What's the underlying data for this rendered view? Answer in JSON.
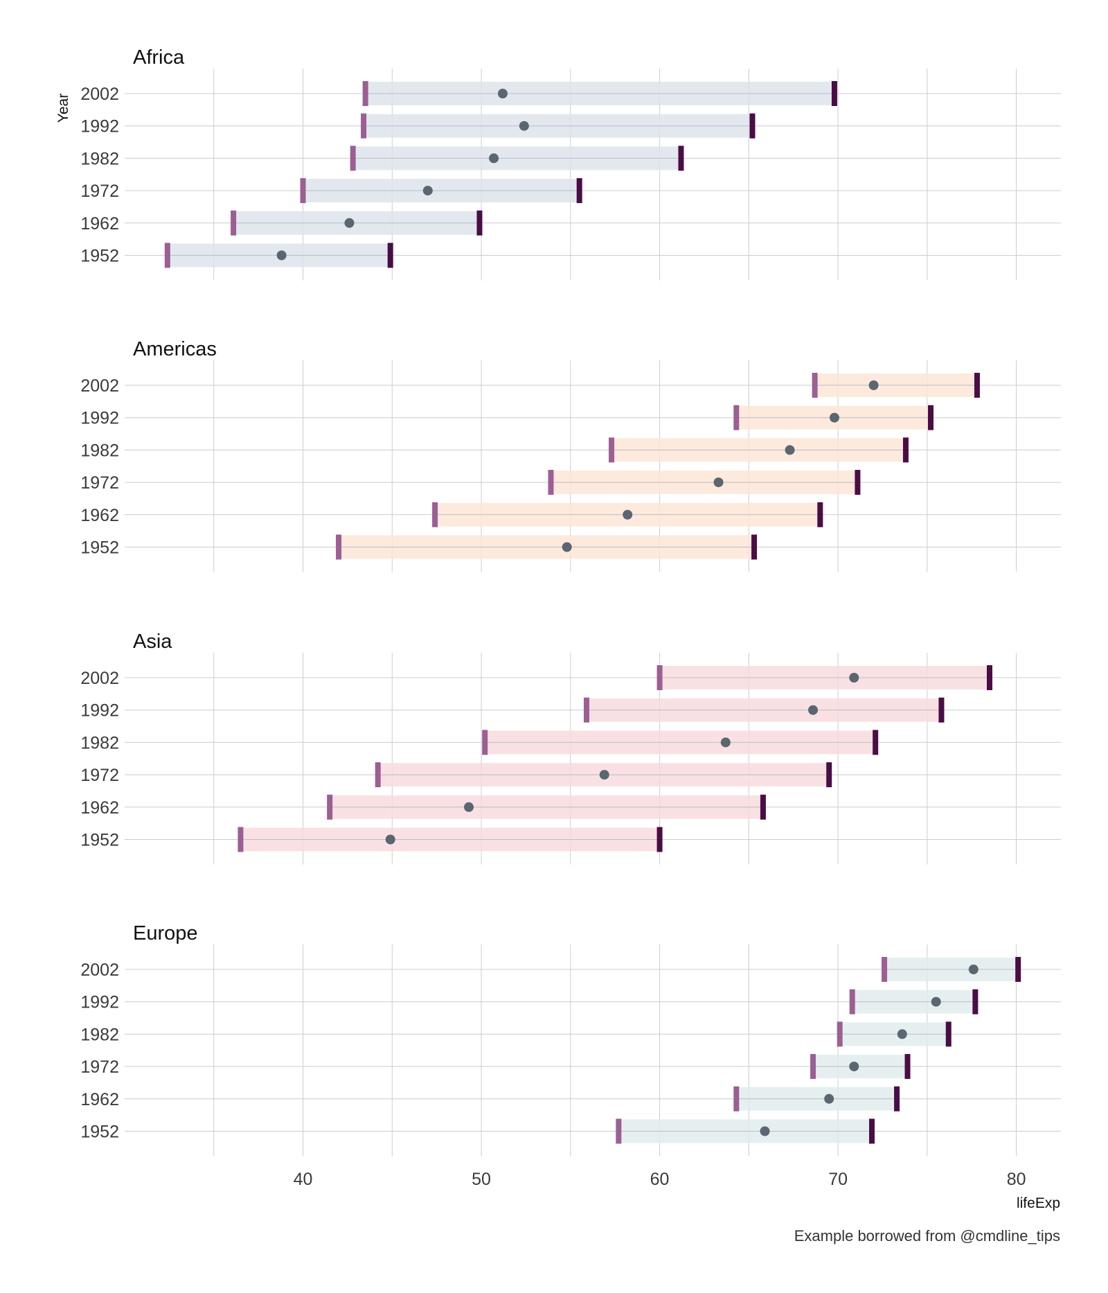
{
  "chart_data": {
    "type": "range-bar",
    "ylabel": "Year",
    "xlabel": "lifeExp",
    "caption": "Example borrowed from @cmdline_tips",
    "xlim": [
      30,
      82.5
    ],
    "x_ticks": [
      40,
      50,
      60,
      70,
      80
    ],
    "years": [
      "2002",
      "1992",
      "1982",
      "1972",
      "1962",
      "1952"
    ],
    "colors": {
      "min_marker": "#9b5f93",
      "max_marker": "#4a0d45",
      "mean_point": "#5a6670",
      "band_Africa": "#dce3ea",
      "band_Americas": "#fce5d6",
      "band_Asia": "#f8dadd",
      "band_Europe": "#e1ecec",
      "grid": "#cccccc"
    },
    "panels": [
      {
        "name": "Africa",
        "rows": [
          {
            "year": "2002",
            "min": 43.5,
            "mean": 51.2,
            "max": 69.8
          },
          {
            "year": "1992",
            "min": 43.4,
            "mean": 52.4,
            "max": 65.2
          },
          {
            "year": "1982",
            "min": 42.8,
            "mean": 50.7,
            "max": 61.2
          },
          {
            "year": "1972",
            "min": 40.0,
            "mean": 47.0,
            "max": 55.5
          },
          {
            "year": "1962",
            "min": 36.1,
            "mean": 42.6,
            "max": 49.9
          },
          {
            "year": "1952",
            "min": 32.4,
            "mean": 38.8,
            "max": 44.9
          }
        ]
      },
      {
        "name": "Americas",
        "rows": [
          {
            "year": "2002",
            "min": 68.7,
            "mean": 72.0,
            "max": 77.8
          },
          {
            "year": "1992",
            "min": 64.3,
            "mean": 69.8,
            "max": 75.2
          },
          {
            "year": "1982",
            "min": 57.3,
            "mean": 67.3,
            "max": 73.8
          },
          {
            "year": "1972",
            "min": 53.9,
            "mean": 63.3,
            "max": 71.1
          },
          {
            "year": "1962",
            "min": 47.4,
            "mean": 58.2,
            "max": 69.0
          },
          {
            "year": "1952",
            "min": 42.0,
            "mean": 54.8,
            "max": 65.3
          }
        ]
      },
      {
        "name": "Asia",
        "rows": [
          {
            "year": "2002",
            "min": 60.0,
            "mean": 70.9,
            "max": 78.5
          },
          {
            "year": "1992",
            "min": 55.9,
            "mean": 68.6,
            "max": 75.8
          },
          {
            "year": "1982",
            "min": 50.2,
            "mean": 63.7,
            "max": 72.1
          },
          {
            "year": "1972",
            "min": 44.2,
            "mean": 56.9,
            "max": 69.5
          },
          {
            "year": "1962",
            "min": 41.5,
            "mean": 49.3,
            "max": 65.8
          },
          {
            "year": "1952",
            "min": 36.5,
            "mean": 44.9,
            "max": 60.0
          }
        ]
      },
      {
        "name": "Europe",
        "rows": [
          {
            "year": "2002",
            "min": 72.6,
            "mean": 77.6,
            "max": 80.1
          },
          {
            "year": "1992",
            "min": 70.8,
            "mean": 75.5,
            "max": 77.7
          },
          {
            "year": "1982",
            "min": 70.1,
            "mean": 73.6,
            "max": 76.2
          },
          {
            "year": "1972",
            "min": 68.6,
            "mean": 70.9,
            "max": 73.9
          },
          {
            "year": "1962",
            "min": 64.3,
            "mean": 69.5,
            "max": 73.3
          },
          {
            "year": "1952",
            "min": 57.7,
            "mean": 65.9,
            "max": 71.9
          }
        ]
      }
    ]
  }
}
